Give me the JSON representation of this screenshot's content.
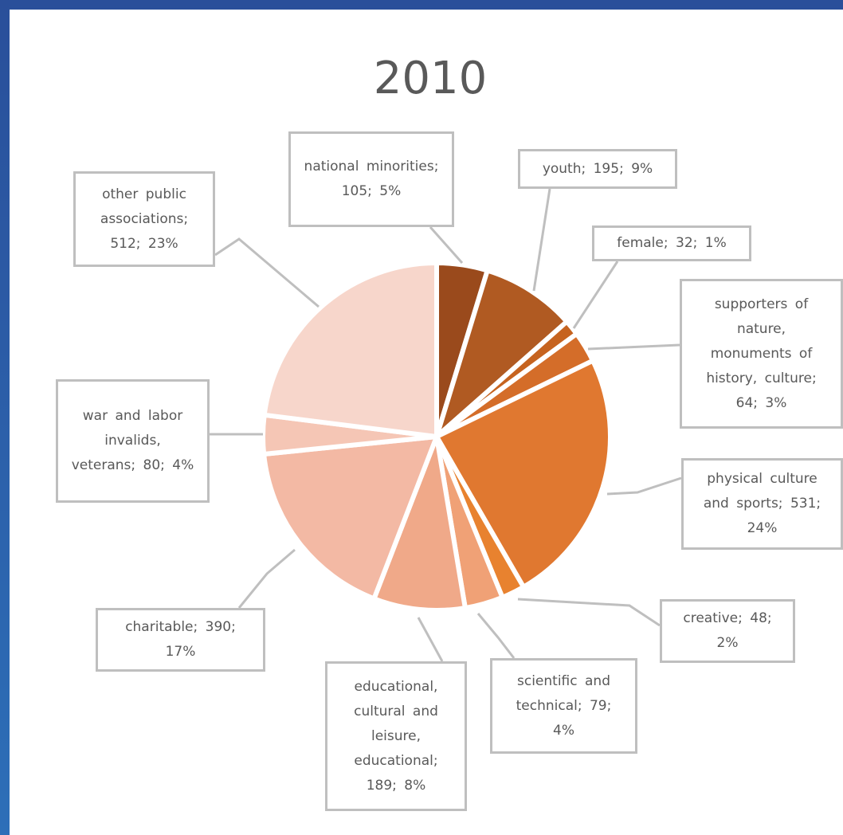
{
  "chart_data": {
    "type": "pie",
    "title": "2010",
    "values": [
      105,
      195,
      32,
      64,
      531,
      48,
      79,
      189,
      390,
      80,
      512
    ],
    "value_labels": [
      "national minorities; 105; 5%",
      "youth; 195; 9%",
      "female; 32; 1%",
      "supporters of nature, monuments of history, culture; 64; 3%",
      "physical culture and sports; 531; 24%",
      "creative; 48; 2%",
      "scientific and technical; 79; 4%",
      "educational, cultural and leisure, educational; 189; 8%",
      "charitable; 390; 17%",
      "war and labor invalids, veterans; 80; 4%",
      "other public associations; 512; 23%"
    ],
    "colors": [
      "#9a4a1c",
      "#b05a22",
      "#c6631f",
      "#d46d29",
      "#e07830",
      "#e8822f",
      "#f0a176",
      "#f0a989",
      "#f3b9a4",
      "#f5c6b5",
      "#f7d6cb"
    ]
  }
}
